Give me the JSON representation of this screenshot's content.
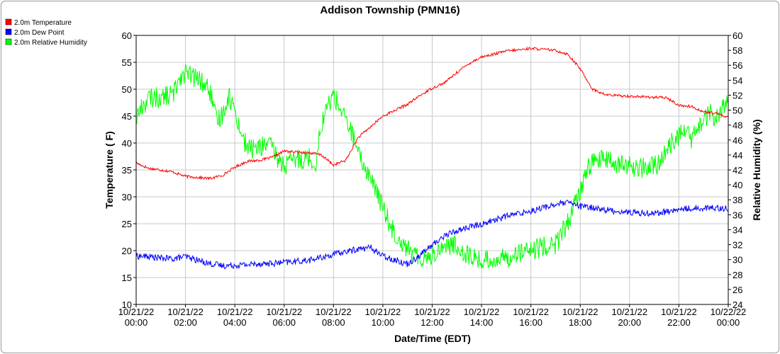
{
  "chart_data": {
    "type": "line",
    "title": "Addison Township (PMN16)",
    "xlabel": "Date/Time (EDT)",
    "ylabel": "Temperature ( F)",
    "ylabel_right": "Relative Humidity (%)",
    "ylim": [
      10,
      60
    ],
    "ylim_right": [
      24,
      60
    ],
    "grid": true,
    "legend_position": "top-left",
    "x_ticks": [
      {
        "hour": 0,
        "date": "10/21/22",
        "time": "00:00"
      },
      {
        "hour": 2,
        "date": "10/21/22",
        "time": "02:00"
      },
      {
        "hour": 4,
        "date": "10/21/22",
        "time": "04:00"
      },
      {
        "hour": 6,
        "date": "10/21/22",
        "time": "06:00"
      },
      {
        "hour": 8,
        "date": "10/21/22",
        "time": "08:00"
      },
      {
        "hour": 10,
        "date": "10/21/22",
        "time": "10:00"
      },
      {
        "hour": 12,
        "date": "10/21/22",
        "time": "12:00"
      },
      {
        "hour": 14,
        "date": "10/21/22",
        "time": "14:00"
      },
      {
        "hour": 16,
        "date": "10/21/22",
        "time": "16:00"
      },
      {
        "hour": 18,
        "date": "10/21/22",
        "time": "18:00"
      },
      {
        "hour": 20,
        "date": "10/21/22",
        "time": "20:00"
      },
      {
        "hour": 22,
        "date": "10/21/22",
        "time": "22:00"
      },
      {
        "hour": 24,
        "date": "10/22/22",
        "time": "00:00"
      }
    ],
    "y_ticks_left": [
      10,
      15,
      20,
      25,
      30,
      35,
      40,
      45,
      50,
      55,
      60
    ],
    "y_ticks_right": [
      24,
      26,
      28,
      30,
      32,
      34,
      36,
      38,
      40,
      42,
      44,
      46,
      48,
      50,
      52,
      54,
      56,
      58,
      60
    ],
    "series": [
      {
        "name": "2.0m Temperature",
        "color": "#ff0000",
        "axis": "left",
        "x": [
          0,
          0.25,
          0.5,
          1,
          1.5,
          2,
          2.5,
          3,
          3.5,
          4,
          4.5,
          5,
          5.5,
          6,
          6.5,
          7,
          7.5,
          8,
          8.5,
          9,
          9.5,
          10,
          10.5,
          11,
          11.5,
          12,
          12.5,
          13,
          13.5,
          14,
          14.5,
          15,
          15.5,
          16,
          16.5,
          17,
          17.5,
          18,
          18.5,
          19,
          19.5,
          20,
          20.5,
          21,
          21.5,
          22,
          22.5,
          23,
          23.5,
          24
        ],
        "y": [
          36.3,
          35.8,
          35.3,
          35.0,
          34.6,
          33.8,
          33.6,
          33.4,
          34.0,
          35.5,
          36.6,
          36.8,
          37.3,
          38.5,
          38.3,
          38.2,
          37.8,
          35.9,
          36.8,
          41.0,
          43.0,
          45.0,
          46.1,
          47.2,
          48.8,
          50.2,
          51.2,
          53.1,
          54.8,
          56.0,
          56.5,
          57.1,
          57.3,
          57.6,
          57.4,
          57.2,
          56.5,
          53.8,
          50.0,
          49.0,
          48.8,
          48.7,
          48.6,
          48.5,
          48.4,
          47.0,
          46.8,
          45.8,
          45.5,
          44.8
        ]
      },
      {
        "name": "2.0m Dew Point",
        "color": "#0000ff",
        "axis": "left",
        "x": [
          0,
          0.5,
          1,
          1.5,
          2,
          2.5,
          3,
          3.5,
          4,
          4.5,
          5,
          5.5,
          6,
          6.5,
          7,
          7.5,
          8,
          8.5,
          9,
          9.5,
          10,
          10.5,
          11,
          11.5,
          12,
          12.5,
          13,
          13.5,
          14,
          14.5,
          15,
          15.5,
          16,
          16.5,
          17,
          17.5,
          18,
          18.5,
          19,
          19.5,
          20,
          20.5,
          21,
          21.5,
          22,
          22.5,
          23,
          23.5,
          24
        ],
        "y": [
          19.0,
          18.9,
          18.6,
          18.5,
          18.9,
          18.2,
          17.6,
          17.2,
          17.3,
          17.4,
          17.6,
          17.6,
          17.8,
          18.0,
          18.2,
          18.7,
          19.3,
          19.8,
          20.3,
          20.6,
          19.0,
          18.3,
          17.5,
          19.2,
          21.0,
          22.8,
          23.7,
          24.4,
          24.9,
          25.7,
          26.4,
          26.9,
          27.4,
          28.0,
          28.6,
          28.9,
          28.2,
          28.0,
          27.6,
          27.3,
          27.1,
          27.0,
          27.0,
          27.2,
          27.6,
          27.9,
          27.9,
          28.0,
          27.8
        ]
      },
      {
        "name": "2.0m Relative Humidity",
        "color": "#00ff00",
        "axis": "right",
        "x": [
          0,
          0.25,
          0.5,
          0.75,
          1,
          1.25,
          1.5,
          1.75,
          2,
          2.25,
          2.5,
          2.75,
          3,
          3.25,
          3.5,
          3.75,
          4,
          4.25,
          4.5,
          4.75,
          5,
          5.25,
          5.5,
          5.75,
          6,
          6.25,
          6.5,
          6.75,
          7,
          7.25,
          7.5,
          7.75,
          8,
          8.25,
          8.5,
          8.75,
          9,
          9.25,
          9.5,
          9.75,
          10,
          10.25,
          10.5,
          10.75,
          11,
          11.25,
          11.5,
          12,
          12.5,
          13,
          13.5,
          14,
          14.5,
          15,
          15.5,
          16,
          16.5,
          17,
          17.25,
          17.5,
          17.75,
          18,
          18.25,
          18.5,
          18.75,
          19,
          19.5,
          20,
          20.5,
          21,
          21.25,
          21.5,
          21.75,
          22,
          22.25,
          22.5,
          22.75,
          23,
          23.25,
          23.5,
          23.75,
          24
        ],
        "y": [
          49.0,
          50.5,
          51.5,
          51.8,
          51.5,
          52.0,
          52.0,
          54.5,
          55.0,
          54.5,
          54.2,
          53.5,
          52.5,
          48.5,
          49.5,
          52.0,
          50.0,
          47.0,
          45.0,
          44.8,
          45.0,
          45.5,
          45.0,
          43.5,
          42.5,
          43.0,
          43.5,
          43.5,
          43.8,
          42.5,
          48.0,
          50.5,
          52.0,
          50.5,
          48.5,
          47.0,
          44.0,
          42.5,
          41.0,
          39.0,
          37.0,
          35.0,
          33.5,
          32.5,
          31.5,
          30.5,
          30.3,
          30.5,
          32.0,
          31.8,
          30.5,
          29.8,
          30.0,
          30.2,
          31.0,
          31.0,
          31.8,
          32.0,
          33.5,
          35.0,
          37.0,
          39.0,
          42.0,
          43.0,
          43.5,
          43.3,
          42.8,
          42.5,
          42.2,
          42.5,
          43.0,
          44.5,
          46.0,
          46.5,
          47.5,
          46.0,
          47.5,
          48.5,
          49.5,
          49.0,
          50.0,
          51.0
        ]
      }
    ]
  }
}
